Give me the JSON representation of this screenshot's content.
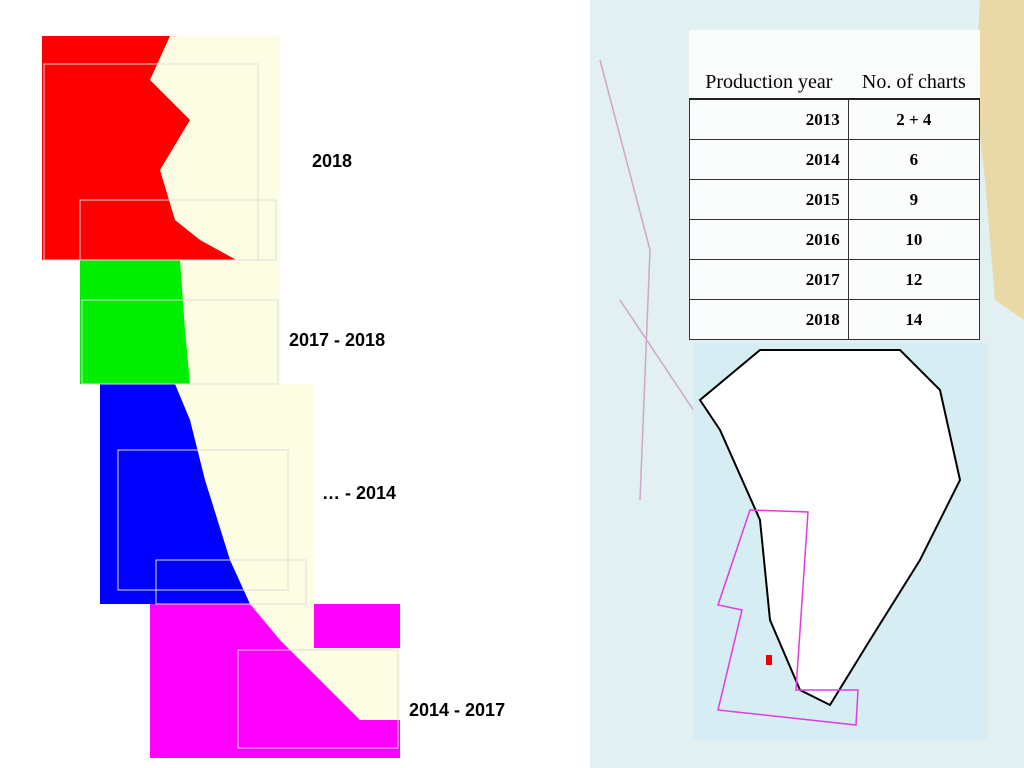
{
  "labels": [
    "2018",
    "2017 - 2018",
    "… - 2014",
    "2014 - 2017"
  ],
  "table": {
    "header": [
      "Production year",
      "No. of charts"
    ],
    "rows": [
      [
        2013,
        "2 + 4"
      ],
      [
        2014,
        6
      ],
      [
        2015,
        9
      ],
      [
        2016,
        10
      ],
      [
        2017,
        12
      ],
      [
        2018,
        14
      ]
    ]
  }
}
